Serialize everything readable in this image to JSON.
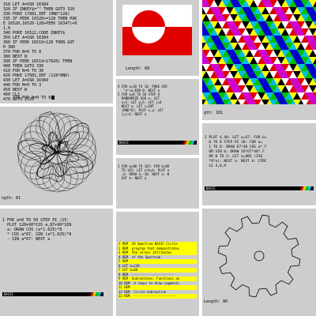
{
  "tiles": {
    "listing_top": {
      "lines": [
        "310 LET A=USR 16384",
        "320 IF INKEY$=\"\" THEN GOTO 320",
        "330 POKE 17081,INT (RND*128)",
        "335 IF PEEK 16520>=128 THEN POK",
        "E 16520,16520-128+PEEK 16347)+8",
        "1,0",
        "340 POKE 16522,CODE INKEY$",
        "350 LET A=USR 16384",
        "360 IF PEEK 16519<128 THEN GOT",
        "0 380",
        "370 FOR N=0 TO 8",
        "380 NEXT N",
        "390 IF PEEK 16514<17920) THEN",
        "400 THEN GOTO 330",
        "410 FOR N=0 TO 30",
        "420 POKE 17081,INT (128*RND)",
        "430 LET A=USR 16384",
        "440 FOR N=0 TO 3",
        "450 NEXT N",
        "460 CLS",
        "470 GOTO 2520"
      ],
      "edit_line": "370 FOR N=0 TO 8"
    },
    "flag": {
      "caption": "Length: 68"
    },
    "pattern": {
      "caption": "gth: 181"
    },
    "listing_mid": {
      "text": "4 FOR a=10 TO 10: POKE USR\n   \"a\"+a,BIN 0: NEXT a\n5 FOR a=0 TO 30 STEP 8\n  RANDOMIZE USR a: LET\n  x=5: LET y=5: LET j=0\n  NEXT a: LET c=INT\n  (RND*8): PLOT x,y: LET\n  j=j+1: NEXT a"
    },
    "bar_mid": {
      "label": "BASIC"
    },
    "plot_program": {
      "text": "2 PLOT 4,40: LET a=67: FOR b=\n  0 TO 8 STEP PI 10: FOR a=\n  1 TO 8: DRAW 67*48 COS a*.F\n  OR SIN b: DRAW 16*67*48*.F\n  OR 0 TO 3: LET a=ABS (256\n  *8*a): NEXT a: NEXT b: CIRC\n  LE 4,0,9"
    },
    "bar_right": {
      "label": "BASIC"
    },
    "spiral": {
      "caption": "ngth: 81"
    },
    "short_program": {
      "text": "1 FOR a=80 TO 165: FOR b=80\n  TO 165: LET a*b=b: PLOT a\n  ,b: DRAW 4,-18: NEXT a: N\n  EXT b: NEXT a"
    },
    "circle_program": {
      "text": "1 FOR a=0 TO 50 STEP PI /25:\n  PLOT 128+90*COS a,87+90*SIN\n  a: DRAW COS (a*1.625)*8\n  * COS a*67, SIN (a*1.625)*8\n  - SIN a*67: NEXT a"
    },
    "bar_left": {
      "label": "BASIC"
    },
    "rem_listing": {
      "rows": [
        "1 REM  ZX Spectrum BASIC Circle",
        "2 REM  program that demonstrates",
        "3 REM  the colour attributes",
        "4 REM  of the Spectrum",
        "5 REM",
        "6 LET a=128",
        "7 LET b=88",
        "8 REM  ----------------------",
        "9 REM  Subroutines. Functions an",
        "10 REM  d loops to draw segments",
        "11 REM",
        "12 REM  Circle Subroutine",
        "13 REM  ----------------------"
      ]
    },
    "gear": {
      "caption": "Length: 80"
    }
  }
}
